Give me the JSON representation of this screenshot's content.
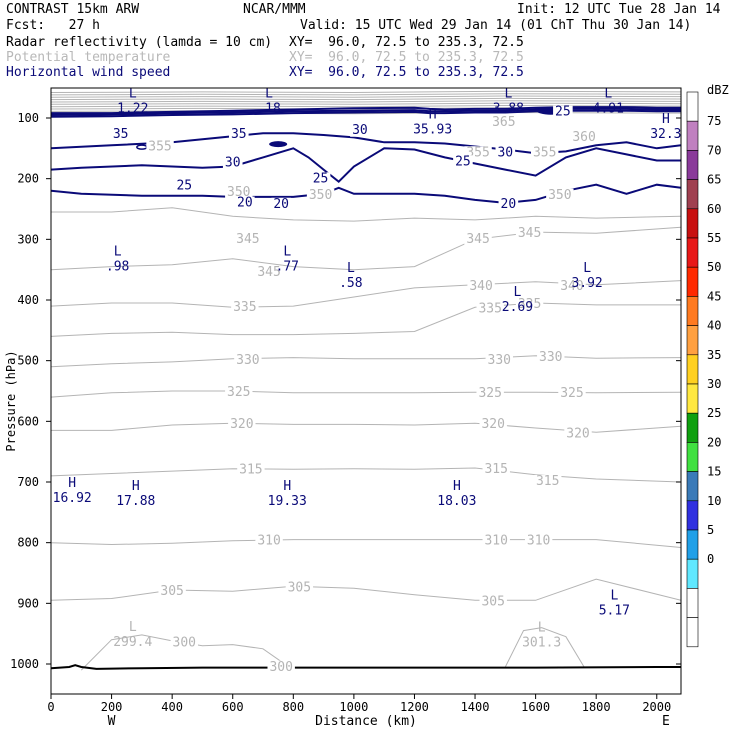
{
  "header": {
    "model": "CONTRAST 15km ARW",
    "center": "NCAR/MMM",
    "init": "Init: 12 UTC Tue 28 Jan 14",
    "fcst": "Fcst:   27 h",
    "valid": "Valid: 15 UTC Wed 29 Jan 14 (01 ChT Thu 30 Jan 14)",
    "fields": [
      {
        "name": "Radar reflectivity (lamda = 10 cm)",
        "xy": "XY=  96.0, 72.5 to 235.3, 72.5"
      },
      {
        "name": "Potential temperature",
        "xy": "XY=  96.0, 72.5 to 235.3, 72.5"
      },
      {
        "name": "Horizontal wind speed",
        "xy": "XY=  96.0, 72.5 to 235.3, 72.5"
      }
    ]
  },
  "colors": {
    "theta": "#b4b4b4",
    "wind": "#0a0a78",
    "terrain": "#000000"
  },
  "chart_data": {
    "type": "contour",
    "xlabel": "Distance (km)",
    "ylabel": "Pressure (hPa)",
    "xlim": [
      0,
      2080
    ],
    "ylim": [
      1050,
      50
    ],
    "x_ticks": [
      0,
      200,
      400,
      600,
      800,
      1000,
      1200,
      1400,
      1600,
      1800,
      2000
    ],
    "y_ticks": [
      100,
      200,
      300,
      400,
      500,
      600,
      700,
      800,
      900,
      1000
    ],
    "x_end_labels": {
      "left": "W",
      "right": "E"
    },
    "colorbar": {
      "title": "dBZ",
      "levels": [
        75,
        70,
        65,
        60,
        55,
        50,
        45,
        40,
        35,
        30,
        25,
        20,
        15,
        10,
        5,
        0
      ],
      "colors": [
        "#ffffff",
        "#c080c0",
        "#8a3a9a",
        "#a04050",
        "#c81010",
        "#e81818",
        "#ff2a00",
        "#ff7a20",
        "#ffa040",
        "#ffd020",
        "#ffe840",
        "#10a010",
        "#40e040",
        "#3a7ab8",
        "#3030e0",
        "#20a0e8",
        "#60e8ff",
        "#ffffff",
        "#ffffff"
      ]
    },
    "theta_labels": [
      {
        "text": "365",
        "x": 1495,
        "p": 105
      },
      {
        "text": "360",
        "x": 1760,
        "p": 130
      },
      {
        "text": "355",
        "x": 360,
        "p": 145
      },
      {
        "text": "355",
        "x": 1630,
        "p": 155
      },
      {
        "text": "355",
        "x": 1410,
        "p": 155
      },
      {
        "text": "350",
        "x": 620,
        "p": 220
      },
      {
        "text": "350",
        "x": 890,
        "p": 225
      },
      {
        "text": "350",
        "x": 1680,
        "p": 225
      },
      {
        "text": "345",
        "x": 650,
        "p": 298
      },
      {
        "text": "345",
        "x": 1410,
        "p": 298
      },
      {
        "text": "345",
        "x": 1580,
        "p": 288
      },
      {
        "text": "345",
        "x": 720,
        "p": 352
      },
      {
        "text": "340",
        "x": 1420,
        "p": 375
      },
      {
        "text": "340",
        "x": 1720,
        "p": 375
      },
      {
        "text": "335",
        "x": 640,
        "p": 410
      },
      {
        "text": "335",
        "x": 1450,
        "p": 412
      },
      {
        "text": "335",
        "x": 1580,
        "p": 405
      },
      {
        "text": "330",
        "x": 650,
        "p": 497
      },
      {
        "text": "330",
        "x": 1480,
        "p": 497
      },
      {
        "text": "330",
        "x": 1650,
        "p": 492
      },
      {
        "text": "325",
        "x": 620,
        "p": 550
      },
      {
        "text": "325",
        "x": 1450,
        "p": 552
      },
      {
        "text": "325",
        "x": 1720,
        "p": 552
      },
      {
        "text": "320",
        "x": 630,
        "p": 603
      },
      {
        "text": "320",
        "x": 1460,
        "p": 603
      },
      {
        "text": "320",
        "x": 1740,
        "p": 618
      },
      {
        "text": "315",
        "x": 660,
        "p": 678
      },
      {
        "text": "315",
        "x": 1470,
        "p": 677
      },
      {
        "text": "315",
        "x": 1640,
        "p": 697
      },
      {
        "text": "310",
        "x": 720,
        "p": 795
      },
      {
        "text": "310",
        "x": 1470,
        "p": 795
      },
      {
        "text": "310",
        "x": 1610,
        "p": 795
      },
      {
        "text": "305",
        "x": 400,
        "p": 878
      },
      {
        "text": "305",
        "x": 820,
        "p": 872
      },
      {
        "text": "305",
        "x": 1460,
        "p": 895
      },
      {
        "text": "300",
        "x": 440,
        "p": 963
      },
      {
        "text": "300",
        "x": 760,
        "p": 1003
      }
    ],
    "wind_labels": [
      {
        "text": "35",
        "x": 230,
        "p": 125
      },
      {
        "text": "35",
        "x": 620,
        "p": 125
      },
      {
        "text": "30",
        "x": 600,
        "p": 172
      },
      {
        "text": "30",
        "x": 1020,
        "p": 118
      },
      {
        "text": "30",
        "x": 1500,
        "p": 155
      },
      {
        "text": "25",
        "x": 440,
        "p": 210
      },
      {
        "text": "25",
        "x": 890,
        "p": 198
      },
      {
        "text": "25",
        "x": 1360,
        "p": 170
      },
      {
        "text": "25",
        "x": 1690,
        "p": 88
      },
      {
        "text": "20",
        "x": 640,
        "p": 238
      },
      {
        "text": "20",
        "x": 760,
        "p": 240
      },
      {
        "text": "20",
        "x": 1510,
        "p": 240
      }
    ],
    "extrema": [
      {
        "type": "L",
        "value": "1.22",
        "x": 270,
        "p": 78,
        "color": "wind"
      },
      {
        "type": "L",
        "value": ".18",
        "x": 720,
        "p": 78,
        "color": "wind"
      },
      {
        "type": "L",
        "value": "3.88",
        "x": 1510,
        "p": 78,
        "color": "wind"
      },
      {
        "type": "L",
        "value": "4.91",
        "x": 1840,
        "p": 78,
        "color": "wind"
      },
      {
        "type": "H",
        "value": "35.93",
        "x": 1260,
        "p": 112,
        "color": "wind"
      },
      {
        "type": "H",
        "value": "32.3",
        "x": 2030,
        "p": 120,
        "color": "wind"
      },
      {
        "type": "L",
        "value": ".98",
        "x": 220,
        "p": 338,
        "color": "wind"
      },
      {
        "type": "L",
        "value": ".77",
        "x": 780,
        "p": 338,
        "color": "wind"
      },
      {
        "type": "L",
        "value": ".58",
        "x": 990,
        "p": 365,
        "color": "wind"
      },
      {
        "type": "L",
        "value": "2.69",
        "x": 1540,
        "p": 405,
        "color": "wind"
      },
      {
        "type": "L",
        "value": "3.92",
        "x": 1770,
        "p": 365,
        "color": "wind"
      },
      {
        "type": "H",
        "value": "16.92",
        "x": 70,
        "p": 720,
        "color": "wind"
      },
      {
        "type": "H",
        "value": "17.88",
        "x": 280,
        "p": 725,
        "color": "wind"
      },
      {
        "type": "H",
        "value": "19.33",
        "x": 780,
        "p": 725,
        "color": "wind"
      },
      {
        "type": "H",
        "value": "18.03",
        "x": 1340,
        "p": 725,
        "color": "wind"
      },
      {
        "type": "L",
        "value": "5.17",
        "x": 1860,
        "p": 905,
        "color": "wind"
      },
      {
        "type": "L",
        "value": "299.4",
        "x": 270,
        "p": 957,
        "color": "theta"
      },
      {
        "type": "L",
        "value": "301.3",
        "x": 1620,
        "p": 958,
        "color": "theta"
      }
    ],
    "theta_lines": [
      {
        "x": [
          0,
          200,
          400,
          600,
          800,
          1000,
          1200,
          1400,
          1600,
          1800,
          2080
        ],
        "p": [
          255,
          255,
          248,
          262,
          268,
          270,
          265,
          268,
          262,
          265,
          262
        ]
      },
      {
        "x": [
          0,
          200,
          400,
          600,
          800,
          1000,
          1200,
          1400,
          1600,
          1800,
          2080
        ],
        "p": [
          350,
          345,
          342,
          332,
          345,
          350,
          345,
          300,
          288,
          290,
          280
        ]
      },
      {
        "x": [
          0,
          200,
          400,
          600,
          800,
          1000,
          1200,
          1400,
          1600,
          1800,
          2080
        ],
        "p": [
          410,
          405,
          405,
          412,
          410,
          395,
          380,
          375,
          370,
          375,
          368
        ]
      },
      {
        "x": [
          0,
          200,
          400,
          600,
          800,
          1000,
          1200,
          1400,
          1600,
          1800,
          2080
        ],
        "p": [
          460,
          455,
          453,
          457,
          457,
          455,
          452,
          412,
          405,
          408,
          408
        ]
      },
      {
        "x": [
          0,
          200,
          400,
          600,
          800,
          1000,
          1200,
          1400,
          1600,
          1800,
          2080
        ],
        "p": [
          510,
          505,
          502,
          497,
          495,
          497,
          497,
          497,
          492,
          496,
          495
        ]
      },
      {
        "x": [
          0,
          200,
          400,
          600,
          800,
          1000,
          1200,
          1400,
          1600,
          1800,
          2080
        ],
        "p": [
          560,
          553,
          550,
          550,
          553,
          553,
          553,
          552,
          552,
          553,
          552
        ]
      },
      {
        "x": [
          0,
          200,
          400,
          600,
          800,
          1000,
          1200,
          1400,
          1600,
          1800,
          2080
        ],
        "p": [
          615,
          615,
          606,
          603,
          605,
          605,
          606,
          603,
          611,
          618,
          608
        ]
      },
      {
        "x": [
          0,
          200,
          400,
          600,
          800,
          1000,
          1200,
          1400,
          1600,
          1800,
          2080
        ],
        "p": [
          690,
          686,
          682,
          678,
          679,
          678,
          679,
          677,
          688,
          695,
          700
        ]
      },
      {
        "x": [
          0,
          200,
          400,
          600,
          800,
          1000,
          1200,
          1400,
          1600,
          1800,
          2080
        ],
        "p": [
          800,
          803,
          801,
          797,
          795,
          795,
          795,
          795,
          795,
          795,
          808
        ]
      },
      {
        "x": [
          0,
          200,
          400,
          600,
          800,
          1000,
          1200,
          1400,
          1600,
          1800,
          2080
        ],
        "p": [
          895,
          892,
          878,
          880,
          872,
          875,
          886,
          895,
          895,
          860,
          895
        ]
      },
      {
        "x": [
          100,
          200,
          300,
          400,
          500,
          600,
          700,
          780
        ],
        "p": [
          1010,
          960,
          952,
          962,
          970,
          968,
          975,
          1003
        ]
      },
      {
        "x": [
          1500,
          1560,
          1620,
          1700,
          1760
        ],
        "p": [
          1005,
          945,
          940,
          955,
          1005
        ]
      }
    ],
    "upper_theta_band": {
      "p_top": 57,
      "p_bottom": 92,
      "count": 10
    },
    "wind_lines": [
      {
        "label": "35-top",
        "x": [
          0,
          200,
          400,
          600,
          800,
          1000,
          1200,
          1250,
          1300,
          1400,
          1500,
          1600,
          1700,
          1800,
          1900,
          2000,
          2080
        ],
        "p": [
          92,
          92,
          90,
          88,
          86,
          84,
          83,
          85,
          86,
          85,
          85,
          83,
          82,
          82,
          82,
          83,
          83
        ]
      },
      {
        "label": "35-b",
        "x": [
          0,
          200,
          400,
          600,
          800,
          1000,
          1200,
          1250,
          1300,
          1400,
          1500,
          1600,
          1700,
          1800,
          1900,
          2000,
          2080
        ],
        "p": [
          95,
          94,
          92,
          91,
          89,
          88,
          87,
          89,
          89,
          88,
          88,
          86,
          85,
          85,
          85,
          86,
          86
        ]
      },
      {
        "label": "35-c",
        "x": [
          0,
          200,
          400,
          600,
          800,
          1000,
          1200,
          1250,
          1300,
          1400,
          1500,
          1600,
          1700,
          1800,
          1900,
          2000,
          2080
        ],
        "p": [
          98,
          97,
          95,
          94,
          92,
          91,
          90,
          92,
          92,
          91,
          91,
          89,
          88,
          88,
          88,
          89,
          89
        ]
      },
      {
        "label": "30",
        "x": [
          0,
          200,
          400,
          600,
          700,
          800,
          900,
          1000,
          1100,
          1200,
          1300,
          1400,
          1500,
          1600,
          1700,
          1800,
          1900,
          2000,
          2080
        ],
        "p": [
          150,
          145,
          140,
          130,
          125,
          125,
          128,
          132,
          140,
          140,
          142,
          147,
          152,
          158,
          155,
          145,
          140,
          150,
          145
        ]
      },
      {
        "label": "25",
        "x": [
          0,
          100,
          300,
          500,
          600,
          700,
          800,
          850,
          900,
          950,
          1000,
          1100,
          1200,
          1300,
          1400,
          1500,
          1600,
          1700,
          1800,
          1900,
          2000,
          2080
        ],
        "p": [
          185,
          182,
          178,
          182,
          180,
          165,
          150,
          165,
          185,
          205,
          180,
          150,
          152,
          165,
          175,
          185,
          195,
          165,
          150,
          160,
          170,
          170
        ]
      },
      {
        "label": "20",
        "x": [
          0,
          100,
          300,
          500,
          600,
          700,
          800,
          900,
          950,
          1000,
          1100,
          1200,
          1300,
          1400,
          1500,
          1600,
          1700,
          1800,
          1900,
          2000,
          2080
        ],
        "p": [
          220,
          225,
          228,
          228,
          230,
          230,
          230,
          225,
          215,
          225,
          225,
          225,
          228,
          235,
          240,
          235,
          220,
          210,
          225,
          210,
          215
        ]
      }
    ],
    "terrain": {
      "x": [
        0,
        60,
        80,
        100,
        150,
        300,
        500,
        800,
        1200,
        1600,
        2000,
        2080
      ],
      "p": [
        1007,
        1005,
        1002,
        1005,
        1008,
        1007,
        1006,
        1006,
        1006,
        1006,
        1005,
        1005
      ]
    }
  }
}
